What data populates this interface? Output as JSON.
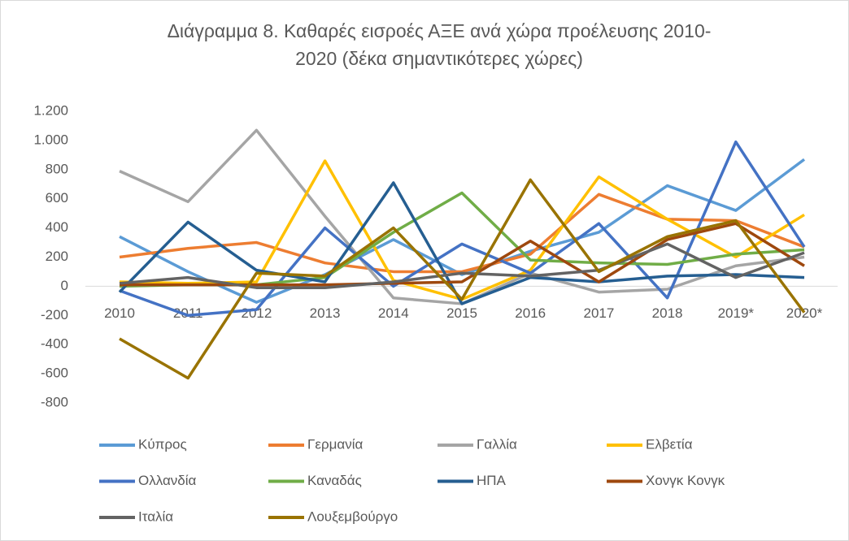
{
  "chart_data": {
    "type": "line",
    "title": [
      "Διάγραμμα 8. Καθαρές εισροές ΑΞΕ ανά χώρα προέλευσης 2010-",
      "2020 (δέκα σημαντικότερες χώρες)"
    ],
    "categories": [
      "2010",
      "2011",
      "2012",
      "2013",
      "2014",
      "2015",
      "2016",
      "2017",
      "2018",
      "2019*",
      "2020*"
    ],
    "ylim": [
      -800,
      1200
    ],
    "yticks": [
      {
        "value": 1200,
        "label": "1.200"
      },
      {
        "value": 1000,
        "label": "1.000"
      },
      800,
      600,
      400,
      200,
      0,
      -200,
      -400,
      -600,
      -800
    ],
    "grid": false,
    "legend": "bottom",
    "series": [
      {
        "name": "Κύπρος",
        "color": "#5b9bd5",
        "values": [
          340,
          100,
          -110,
          80,
          320,
          80,
          240,
          370,
          690,
          520,
          870
        ]
      },
      {
        "name": "Γερμανία",
        "color": "#ed7d31",
        "values": [
          200,
          260,
          300,
          160,
          100,
          100,
          220,
          630,
          460,
          450,
          270
        ]
      },
      {
        "name": "Γαλλία",
        "color": "#a5a5a5",
        "values": [
          790,
          580,
          1070,
          480,
          -80,
          -120,
          90,
          -40,
          -20,
          140,
          200
        ]
      },
      {
        "name": "Ελβετία",
        "color": "#ffc000",
        "values": [
          30,
          20,
          30,
          860,
          40,
          -90,
          110,
          750,
          460,
          200,
          490
        ]
      },
      {
        "name": "Ολλανδία",
        "color": "#4472c4",
        "values": [
          -30,
          -200,
          -160,
          400,
          0,
          290,
          90,
          430,
          -80,
          990,
          270
        ]
      },
      {
        "name": "Καναδάς",
        "color": "#70ad47",
        "values": [
          0,
          10,
          10,
          60,
          370,
          640,
          180,
          160,
          150,
          220,
          250
        ]
      },
      {
        "name": "ΗΠΑ",
        "color": "#255e91",
        "values": [
          -40,
          440,
          110,
          30,
          710,
          -120,
          60,
          30,
          70,
          80,
          60
        ]
      },
      {
        "name": "Χονγκ Κονγκ",
        "color": "#9e480e",
        "values": [
          10,
          10,
          10,
          10,
          20,
          30,
          310,
          30,
          320,
          430,
          140
        ]
      },
      {
        "name": "Ιταλία",
        "color": "#636363",
        "values": [
          20,
          60,
          -10,
          -10,
          30,
          90,
          70,
          110,
          290,
          60,
          230
        ]
      },
      {
        "name": "Λουξεμβούργο",
        "color": "#997300",
        "values": [
          -360,
          -630,
          90,
          70,
          400,
          -90,
          730,
          100,
          340,
          450,
          -180
        ]
      }
    ]
  }
}
